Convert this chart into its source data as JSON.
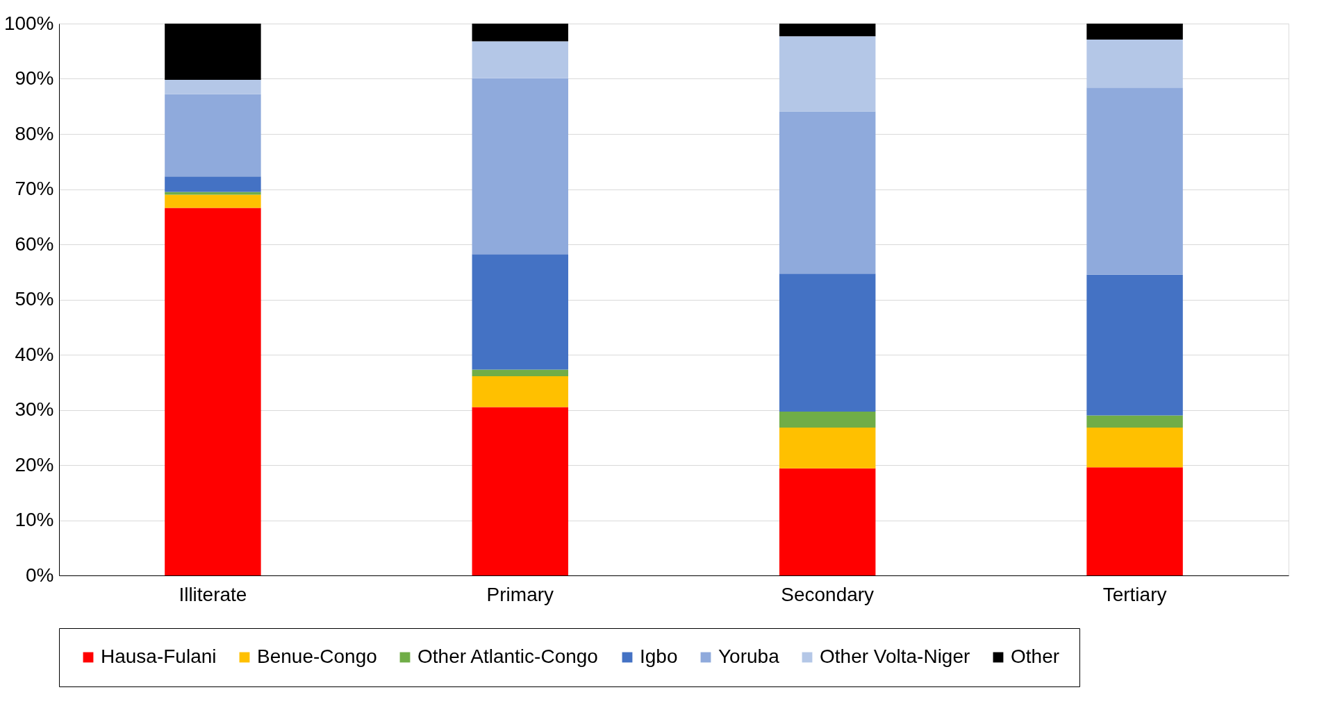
{
  "chart_data": {
    "type": "bar",
    "stacked": true,
    "categories": [
      "Illiterate",
      "Primary",
      "Secondary",
      "Tertiary"
    ],
    "series": [
      {
        "name": "Hausa-Fulani",
        "color": "#ff0000",
        "values": [
          66.6,
          30.5,
          19.4,
          19.6
        ]
      },
      {
        "name": "Benue-Congo",
        "color": "#ffc000",
        "values": [
          2.4,
          5.6,
          7.4,
          7.2
        ]
      },
      {
        "name": "Other Atlantic-Congo",
        "color": "#70ad47",
        "values": [
          0.5,
          1.2,
          2.9,
          2.2
        ]
      },
      {
        "name": "Igbo",
        "color": "#4472c4",
        "values": [
          2.8,
          20.9,
          25.0,
          25.5
        ]
      },
      {
        "name": "Yoruba",
        "color": "#8faadc",
        "values": [
          14.9,
          31.9,
          29.4,
          33.9
        ]
      },
      {
        "name": "Other Volta-Niger",
        "color": "#b4c7e7",
        "values": [
          2.6,
          6.7,
          13.6,
          8.7
        ]
      },
      {
        "name": "Other",
        "color": "#000000",
        "values": [
          10.2,
          3.2,
          2.3,
          2.9
        ]
      }
    ],
    "ylim": [
      0,
      100
    ],
    "yticks": [
      {
        "value": 0,
        "label": "0%"
      },
      {
        "value": 10,
        "label": "10%"
      },
      {
        "value": 20,
        "label": "20%"
      },
      {
        "value": 30,
        "label": "30%"
      },
      {
        "value": 40,
        "label": "40%"
      },
      {
        "value": 50,
        "label": "50%"
      },
      {
        "value": 60,
        "label": "60%"
      },
      {
        "value": 70,
        "label": "70%"
      },
      {
        "value": 80,
        "label": "80%"
      },
      {
        "value": 90,
        "label": "90%"
      },
      {
        "value": 100,
        "label": "100%"
      }
    ],
    "grid": "y",
    "legend": "bottom"
  }
}
